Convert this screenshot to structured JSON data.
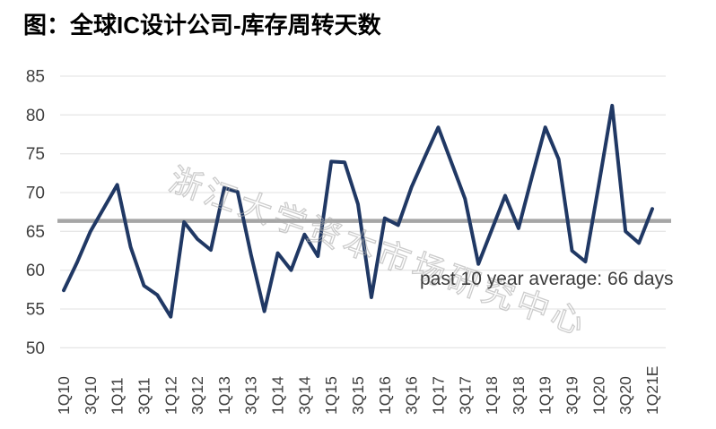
{
  "figure": {
    "title": "图：全球IC设计公司-库存周转天数",
    "watermark": "浙江大学资本市场研究中心",
    "annotation": "past 10 year average: 66 days"
  },
  "colors": {
    "series_line": "#203864",
    "average_line": "#a6a6a6",
    "gridline": "#e7e7e7",
    "axis_text": "#3f3f3f",
    "annotation_text": "#3c3c3c",
    "title_text": "#000000",
    "watermark_outline": "#ababab"
  },
  "chart_data": {
    "type": "line",
    "title": "全球IC设计公司-库存周转天数",
    "xlabel": "",
    "ylabel": "",
    "ylim": [
      50,
      85
    ],
    "yticks": [
      50,
      55,
      60,
      65,
      70,
      75,
      80,
      85
    ],
    "grid": "horizontal",
    "legend": "none",
    "xtick_shown_every": 2,
    "x": [
      "1Q10",
      "2Q10",
      "3Q10",
      "4Q10",
      "1Q11",
      "2Q11",
      "3Q11",
      "4Q11",
      "1Q12",
      "2Q12",
      "3Q12",
      "4Q12",
      "1Q13",
      "2Q13",
      "3Q13",
      "4Q13",
      "1Q14",
      "2Q14",
      "3Q14",
      "4Q14",
      "1Q15",
      "2Q15",
      "3Q15",
      "4Q15",
      "1Q16",
      "2Q16",
      "3Q16",
      "4Q16",
      "1Q17",
      "2Q17",
      "3Q17",
      "4Q17",
      "1Q18",
      "2Q18",
      "3Q18",
      "4Q18",
      "1Q19",
      "2Q19",
      "3Q19",
      "4Q19",
      "1Q20",
      "2Q20",
      "3Q20",
      "4Q20",
      "1Q21E"
    ],
    "series": [
      {
        "name": "全球IC设计公司库存周转天数",
        "values": [
          57.4,
          61.0,
          65.0,
          68.0,
          71.0,
          63.0,
          58.0,
          56.8,
          54.0,
          66.2,
          64.0,
          62.6,
          70.6,
          70.1,
          62.0,
          54.7,
          62.2,
          60.0,
          64.6,
          61.8,
          74.0,
          73.9,
          68.5,
          56.5,
          66.7,
          65.8,
          70.7,
          74.6,
          78.4,
          73.8,
          69.2,
          60.8,
          65.2,
          69.6,
          65.4,
          72.0,
          78.4,
          74.3,
          62.5,
          61.1,
          71.0,
          81.2,
          65.0,
          63.5,
          67.9
        ]
      }
    ],
    "average_line": {
      "value": 66.35,
      "label": "past 10 year average: 66 days"
    }
  }
}
